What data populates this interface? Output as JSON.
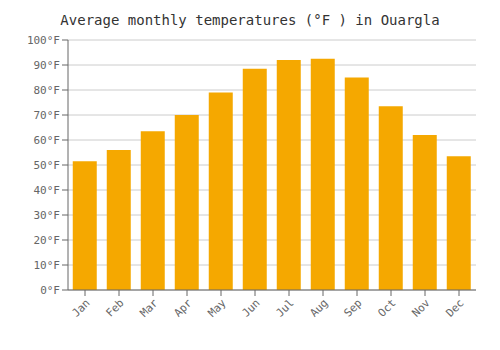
{
  "chart_data": {
    "type": "bar",
    "title": "Average monthly temperatures (°F ) in Ouargla",
    "categories": [
      "Jan",
      "Feb",
      "Mar",
      "Apr",
      "May",
      "Jun",
      "Jul",
      "Aug",
      "Sep",
      "Oct",
      "Nov",
      "Dec"
    ],
    "values": [
      51.5,
      56.0,
      63.5,
      70.0,
      79.0,
      88.5,
      92.0,
      92.5,
      85.0,
      73.5,
      62.0,
      53.5
    ],
    "color": "#F5A800",
    "ylim": [
      0,
      100
    ],
    "yticks": [
      {
        "value": 0,
        "label": "0°F"
      },
      {
        "value": 10,
        "label": "10°F"
      },
      {
        "value": 20,
        "label": "20°F"
      },
      {
        "value": 30,
        "label": "30°F"
      },
      {
        "value": 40,
        "label": "40°F"
      },
      {
        "value": 50,
        "label": "50°F"
      },
      {
        "value": 60,
        "label": "60°F"
      },
      {
        "value": 70,
        "label": "70°F"
      },
      {
        "value": 80,
        "label": "80°F"
      },
      {
        "value": 90,
        "label": "90°F"
      },
      {
        "value": 100,
        "label": "100°F"
      }
    ],
    "grid": true
  }
}
